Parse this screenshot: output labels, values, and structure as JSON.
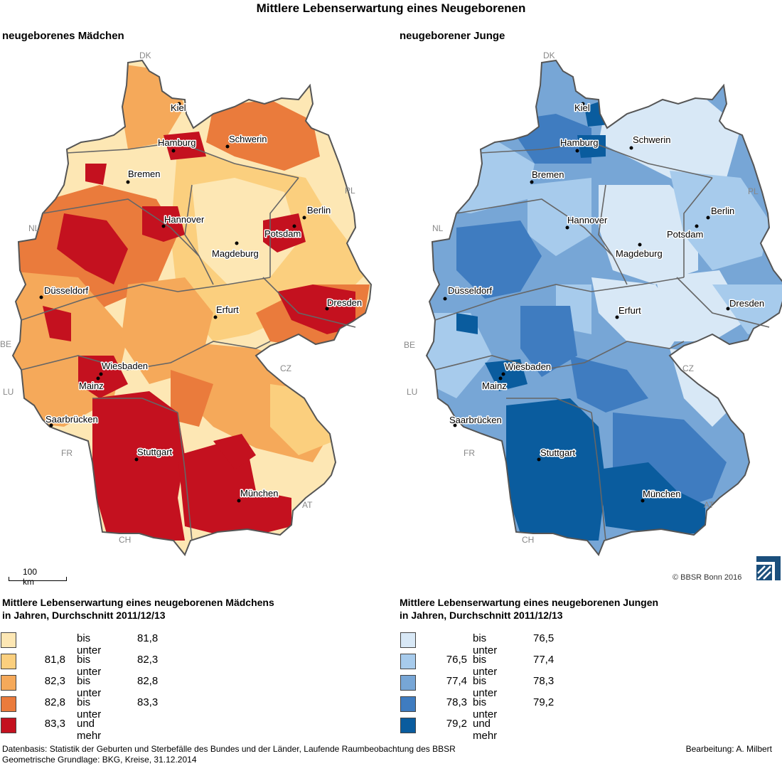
{
  "title": "Mittlere Lebenserwartung eines Neugeborenen",
  "maps": [
    {
      "subtitle": "neugeborenes Mädchen",
      "legend_title_line1": "Mittlere Lebenserwartung eines neugeborenen Mädchens",
      "legend_title_line2": "in Jahren, Durchschnitt 2011/12/13",
      "palette": [
        "#fde7b4",
        "#fbcf7e",
        "#f5a95a",
        "#ea7b3c",
        "#c4111f"
      ],
      "classes": [
        {
          "lo": "",
          "label": "bis unter",
          "hi": "81,8"
        },
        {
          "lo": "81,8",
          "label": "bis unter",
          "hi": "82,3"
        },
        {
          "lo": "82,3",
          "label": "bis unter",
          "hi": "82,8"
        },
        {
          "lo": "82,8",
          "label": "bis unter",
          "hi": "83,3"
        },
        {
          "lo": "83,3",
          "label": "und mehr",
          "hi": ""
        }
      ]
    },
    {
      "subtitle": "neugeborener Junge",
      "legend_title_line1": "Mittlere Lebenserwartung eines neugeborenen Jungen",
      "legend_title_line2": "in Jahren, Durchschnitt 2011/12/13",
      "palette": [
        "#d8e8f6",
        "#a7cbec",
        "#77a6d6",
        "#3f7cc0",
        "#0a5c9e"
      ],
      "classes": [
        {
          "lo": "",
          "label": "bis unter",
          "hi": "76,5"
        },
        {
          "lo": "76,5",
          "label": "bis unter",
          "hi": "77,4"
        },
        {
          "lo": "77,4",
          "label": "bis unter",
          "hi": "78,3"
        },
        {
          "lo": "78,3",
          "label": "bis unter",
          "hi": "79,2"
        },
        {
          "lo": "79,2",
          "label": "und mehr",
          "hi": ""
        }
      ]
    }
  ],
  "cities": [
    "Kiel",
    "Hamburg",
    "Schwerin",
    "Bremen",
    "Hannover",
    "Berlin",
    "Potsdam",
    "Magdeburg",
    "Düsseldorf",
    "Erfurt",
    "Dresden",
    "Wiesbaden",
    "Mainz",
    "Saarbrücken",
    "Stuttgart",
    "München"
  ],
  "countries": [
    "DK",
    "PL",
    "NL",
    "BE",
    "LU",
    "FR",
    "CH",
    "AT",
    "CZ"
  ],
  "scalebar": "100 km",
  "copyright": "© BBSR Bonn 2016",
  "footer_line1": "Datenbasis: Statistik der Geburten und Sterbefälle des Bundes und der Länder, Laufende Raumbeobachtung des BBSR",
  "footer_line2": "Geometrische Grundlage: BKG, Kreise, 31.12.2014",
  "credit": "Bearbeitung: A. Milbert"
}
